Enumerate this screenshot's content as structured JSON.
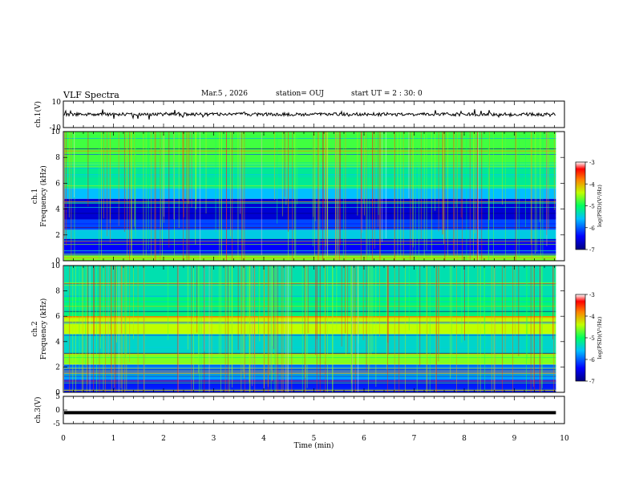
{
  "header": {
    "title": "VLF Spectra",
    "date": "Mar.5 , 2026",
    "station": "station= OUJ",
    "start": "start UT = 2 : 30: 0"
  },
  "chart_data": [
    {
      "type": "line",
      "panel": "waveform-ch1",
      "ylabel": "ch.1(V)",
      "ylim": [
        -10,
        10
      ],
      "yticks": [
        "10",
        "-10"
      ],
      "description_level": 0,
      "x_range": [
        0,
        10
      ],
      "data_end_min": 9.83
    },
    {
      "type": "heatmap",
      "panel": "spectrogram-ch1",
      "ylabel": "ch.1\nFrequency (kHz)",
      "ylim": [
        0,
        10
      ],
      "yticks": [
        "10",
        "8",
        "6",
        "4",
        "2",
        "0"
      ],
      "x_range": [
        0,
        10
      ],
      "data_end_min": 9.83,
      "colorbar": {
        "label": "log(PSD)(V²/Hz)",
        "ticks": [
          "-3",
          "-4",
          "-5",
          "-6",
          "-7"
        ],
        "range": [
          -7,
          -3
        ]
      },
      "bands": [
        {
          "f_lo": 0.0,
          "f_hi": 0.5,
          "level": -4.6
        },
        {
          "f_lo": 0.5,
          "f_hi": 1.7,
          "level": -6.4
        },
        {
          "f_lo": 1.7,
          "f_hi": 2.4,
          "level": -5.5
        },
        {
          "f_lo": 2.4,
          "f_hi": 3.2,
          "level": -6.1
        },
        {
          "f_lo": 3.2,
          "f_hi": 4.8,
          "level": -6.6
        },
        {
          "f_lo": 4.8,
          "f_hi": 5.6,
          "level": -5.6
        },
        {
          "f_lo": 5.6,
          "f_hi": 7.5,
          "level": -5.2
        },
        {
          "f_lo": 7.5,
          "f_hi": 10.0,
          "level": -4.8
        }
      ]
    },
    {
      "type": "heatmap",
      "panel": "spectrogram-ch2",
      "ylabel": "ch.2\nFrequency (kHz)",
      "ylim": [
        0,
        10
      ],
      "yticks": [
        "10",
        "8",
        "6",
        "4",
        "2",
        "0"
      ],
      "x_range": [
        0,
        10
      ],
      "data_end_min": 9.83,
      "colorbar": {
        "label": "log(PSD)(V²/Hz)",
        "ticks": [
          "-3",
          "-4",
          "-5",
          "-6",
          "-7"
        ],
        "range": [
          -7,
          -3
        ]
      },
      "bands": [
        {
          "f_lo": 0.0,
          "f_hi": 1.0,
          "level": -6.3
        },
        {
          "f_lo": 1.0,
          "f_hi": 2.2,
          "level": -5.8
        },
        {
          "f_lo": 2.2,
          "f_hi": 3.1,
          "level": -4.6
        },
        {
          "f_lo": 3.1,
          "f_hi": 4.6,
          "level": -5.4
        },
        {
          "f_lo": 4.6,
          "f_hi": 6.0,
          "level": -4.4
        },
        {
          "f_lo": 6.0,
          "f_hi": 7.5,
          "level": -5.1
        },
        {
          "f_lo": 7.5,
          "f_hi": 10.0,
          "level": -5.3
        }
      ]
    },
    {
      "type": "line",
      "panel": "waveform-ch3",
      "ylabel": "ch.3(V)",
      "ylim": [
        -5,
        5
      ],
      "yticks": [
        "5",
        "0",
        "-5"
      ],
      "description_level": -1,
      "x_range": [
        0,
        10
      ],
      "data_end_min": 9.83,
      "xlabel": "Time (min)",
      "xticks": [
        "0",
        "1",
        "2",
        "3",
        "4",
        "5",
        "6",
        "7",
        "8",
        "9",
        "10"
      ]
    }
  ]
}
